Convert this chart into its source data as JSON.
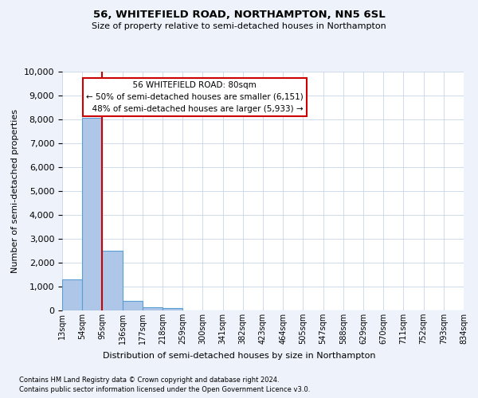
{
  "title": "56, WHITEFIELD ROAD, NORTHAMPTON, NN5 6SL",
  "subtitle": "Size of property relative to semi-detached houses in Northampton",
  "xlabel_bottom": "Distribution of semi-detached houses by size in Northampton",
  "ylabel": "Number of semi-detached properties",
  "bar_values": [
    1300,
    8050,
    2500,
    400,
    150,
    110,
    0,
    0,
    0,
    0,
    0,
    0,
    0,
    0,
    0,
    0,
    0,
    0,
    0,
    0
  ],
  "categories": [
    "13sqm",
    "54sqm",
    "95sqm",
    "136sqm",
    "177sqm",
    "218sqm",
    "259sqm",
    "300sqm",
    "341sqm",
    "382sqm",
    "423sqm",
    "464sqm",
    "505sqm",
    "547sqm",
    "588sqm",
    "629sqm",
    "670sqm",
    "711sqm",
    "752sqm",
    "793sqm",
    "834sqm"
  ],
  "bar_color": "#aec6e8",
  "bar_edge_color": "#5a9fd4",
  "red_line_x": 2,
  "property_size": "80sqm",
  "property_name": "56 WHITEFIELD ROAD",
  "pct_smaller": 50,
  "count_smaller": 6151,
  "pct_larger": 48,
  "count_larger": 5933,
  "annotation_box_color": "#cc0000",
  "ylim": [
    0,
    10000
  ],
  "yticks": [
    0,
    1000,
    2000,
    3000,
    4000,
    5000,
    6000,
    7000,
    8000,
    9000,
    10000
  ],
  "footer_line1": "Contains HM Land Registry data © Crown copyright and database right 2024.",
  "footer_line2": "Contains public sector information licensed under the Open Government Licence v3.0.",
  "bg_color": "#eef2fa",
  "plot_bg_color": "#ffffff",
  "grid_color": "#c8d4e8"
}
